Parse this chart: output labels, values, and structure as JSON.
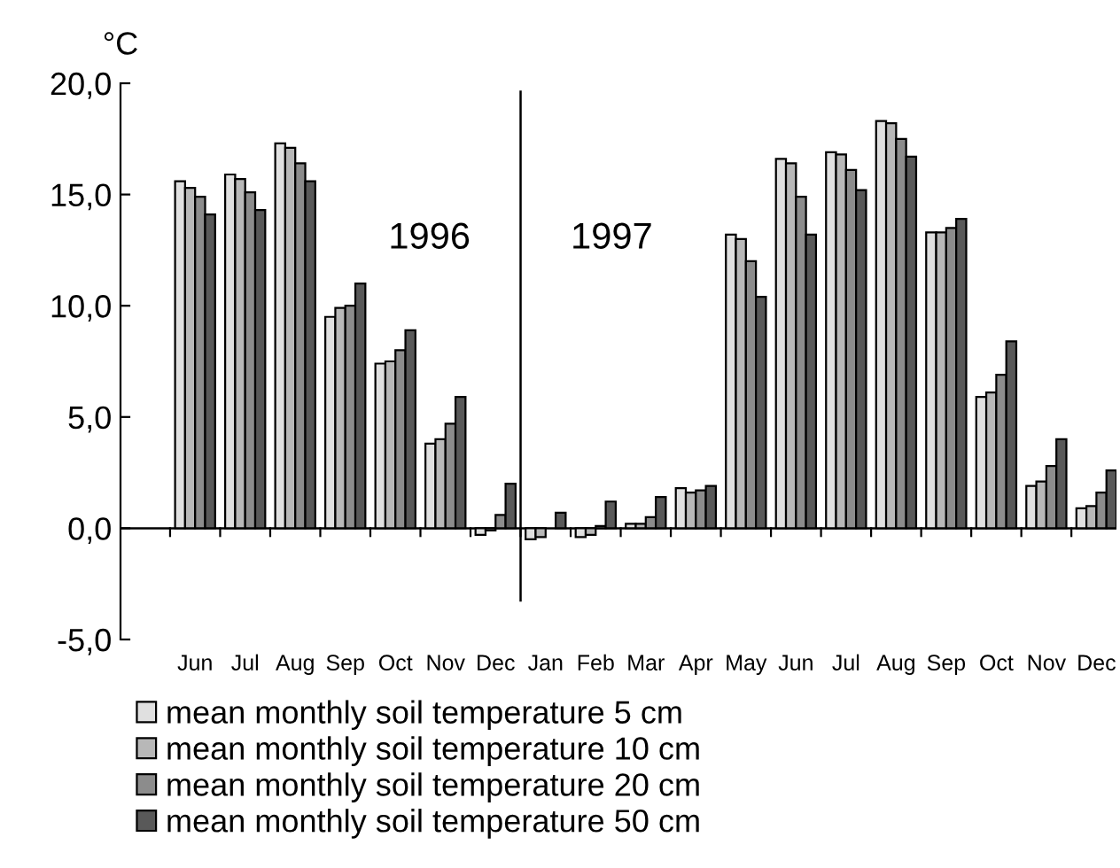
{
  "chart_data": {
    "type": "bar",
    "ylabel": "°C",
    "categories": [
      "Jun",
      "Jul",
      "Aug",
      "Sep",
      "Oct",
      "Nov",
      "Dec",
      "Jan",
      "Feb",
      "Mar",
      "Apr",
      "May",
      "Jun",
      "Jul",
      "Aug",
      "Sep",
      "Oct",
      "Nov",
      "Dec"
    ],
    "series": [
      {
        "name": "mean monthly soil temperature 5 cm",
        "color": "#e0e0e0",
        "values": [
          15.6,
          15.9,
          17.3,
          9.5,
          7.4,
          3.8,
          -0.3,
          -0.5,
          -0.4,
          0.2,
          1.8,
          13.2,
          16.6,
          16.9,
          18.3,
          13.3,
          5.9,
          1.9,
          0.9
        ]
      },
      {
        "name": "mean monthly soil temperature 10 cm",
        "color": "#b8b8b8",
        "values": [
          15.3,
          15.7,
          17.1,
          9.9,
          7.5,
          4.0,
          -0.1,
          -0.4,
          -0.3,
          0.2,
          1.6,
          13.0,
          16.4,
          16.8,
          18.2,
          13.3,
          6.1,
          2.1,
          1.0
        ]
      },
      {
        "name": "mean monthly soil temperature 20 cm",
        "color": "#8c8c8c",
        "values": [
          14.9,
          15.1,
          16.4,
          10.0,
          8.0,
          4.7,
          0.6,
          null,
          0.1,
          0.5,
          1.7,
          12.0,
          14.9,
          16.1,
          17.5,
          13.5,
          6.9,
          2.8,
          1.6
        ]
      },
      {
        "name": "mean monthly soil temperature 50 cm",
        "color": "#595959",
        "values": [
          14.1,
          14.3,
          15.6,
          11.0,
          8.9,
          5.9,
          2.0,
          0.7,
          1.2,
          1.4,
          1.9,
          10.4,
          13.2,
          15.2,
          16.7,
          13.9,
          8.4,
          4.0,
          2.6
        ]
      }
    ],
    "ylim": [
      -5,
      20
    ],
    "yticks": [
      {
        "value": -5,
        "label": "-5,0"
      },
      {
        "value": 0,
        "label": "0,0"
      },
      {
        "value": 5,
        "label": "5,0"
      },
      {
        "value": 10,
        "label": "10,0"
      },
      {
        "value": 15,
        "label": "15,0"
      },
      {
        "value": 20,
        "label": "20,0"
      }
    ],
    "annotations": [
      "1996",
      "1997"
    ],
    "legend": "bottom"
  }
}
